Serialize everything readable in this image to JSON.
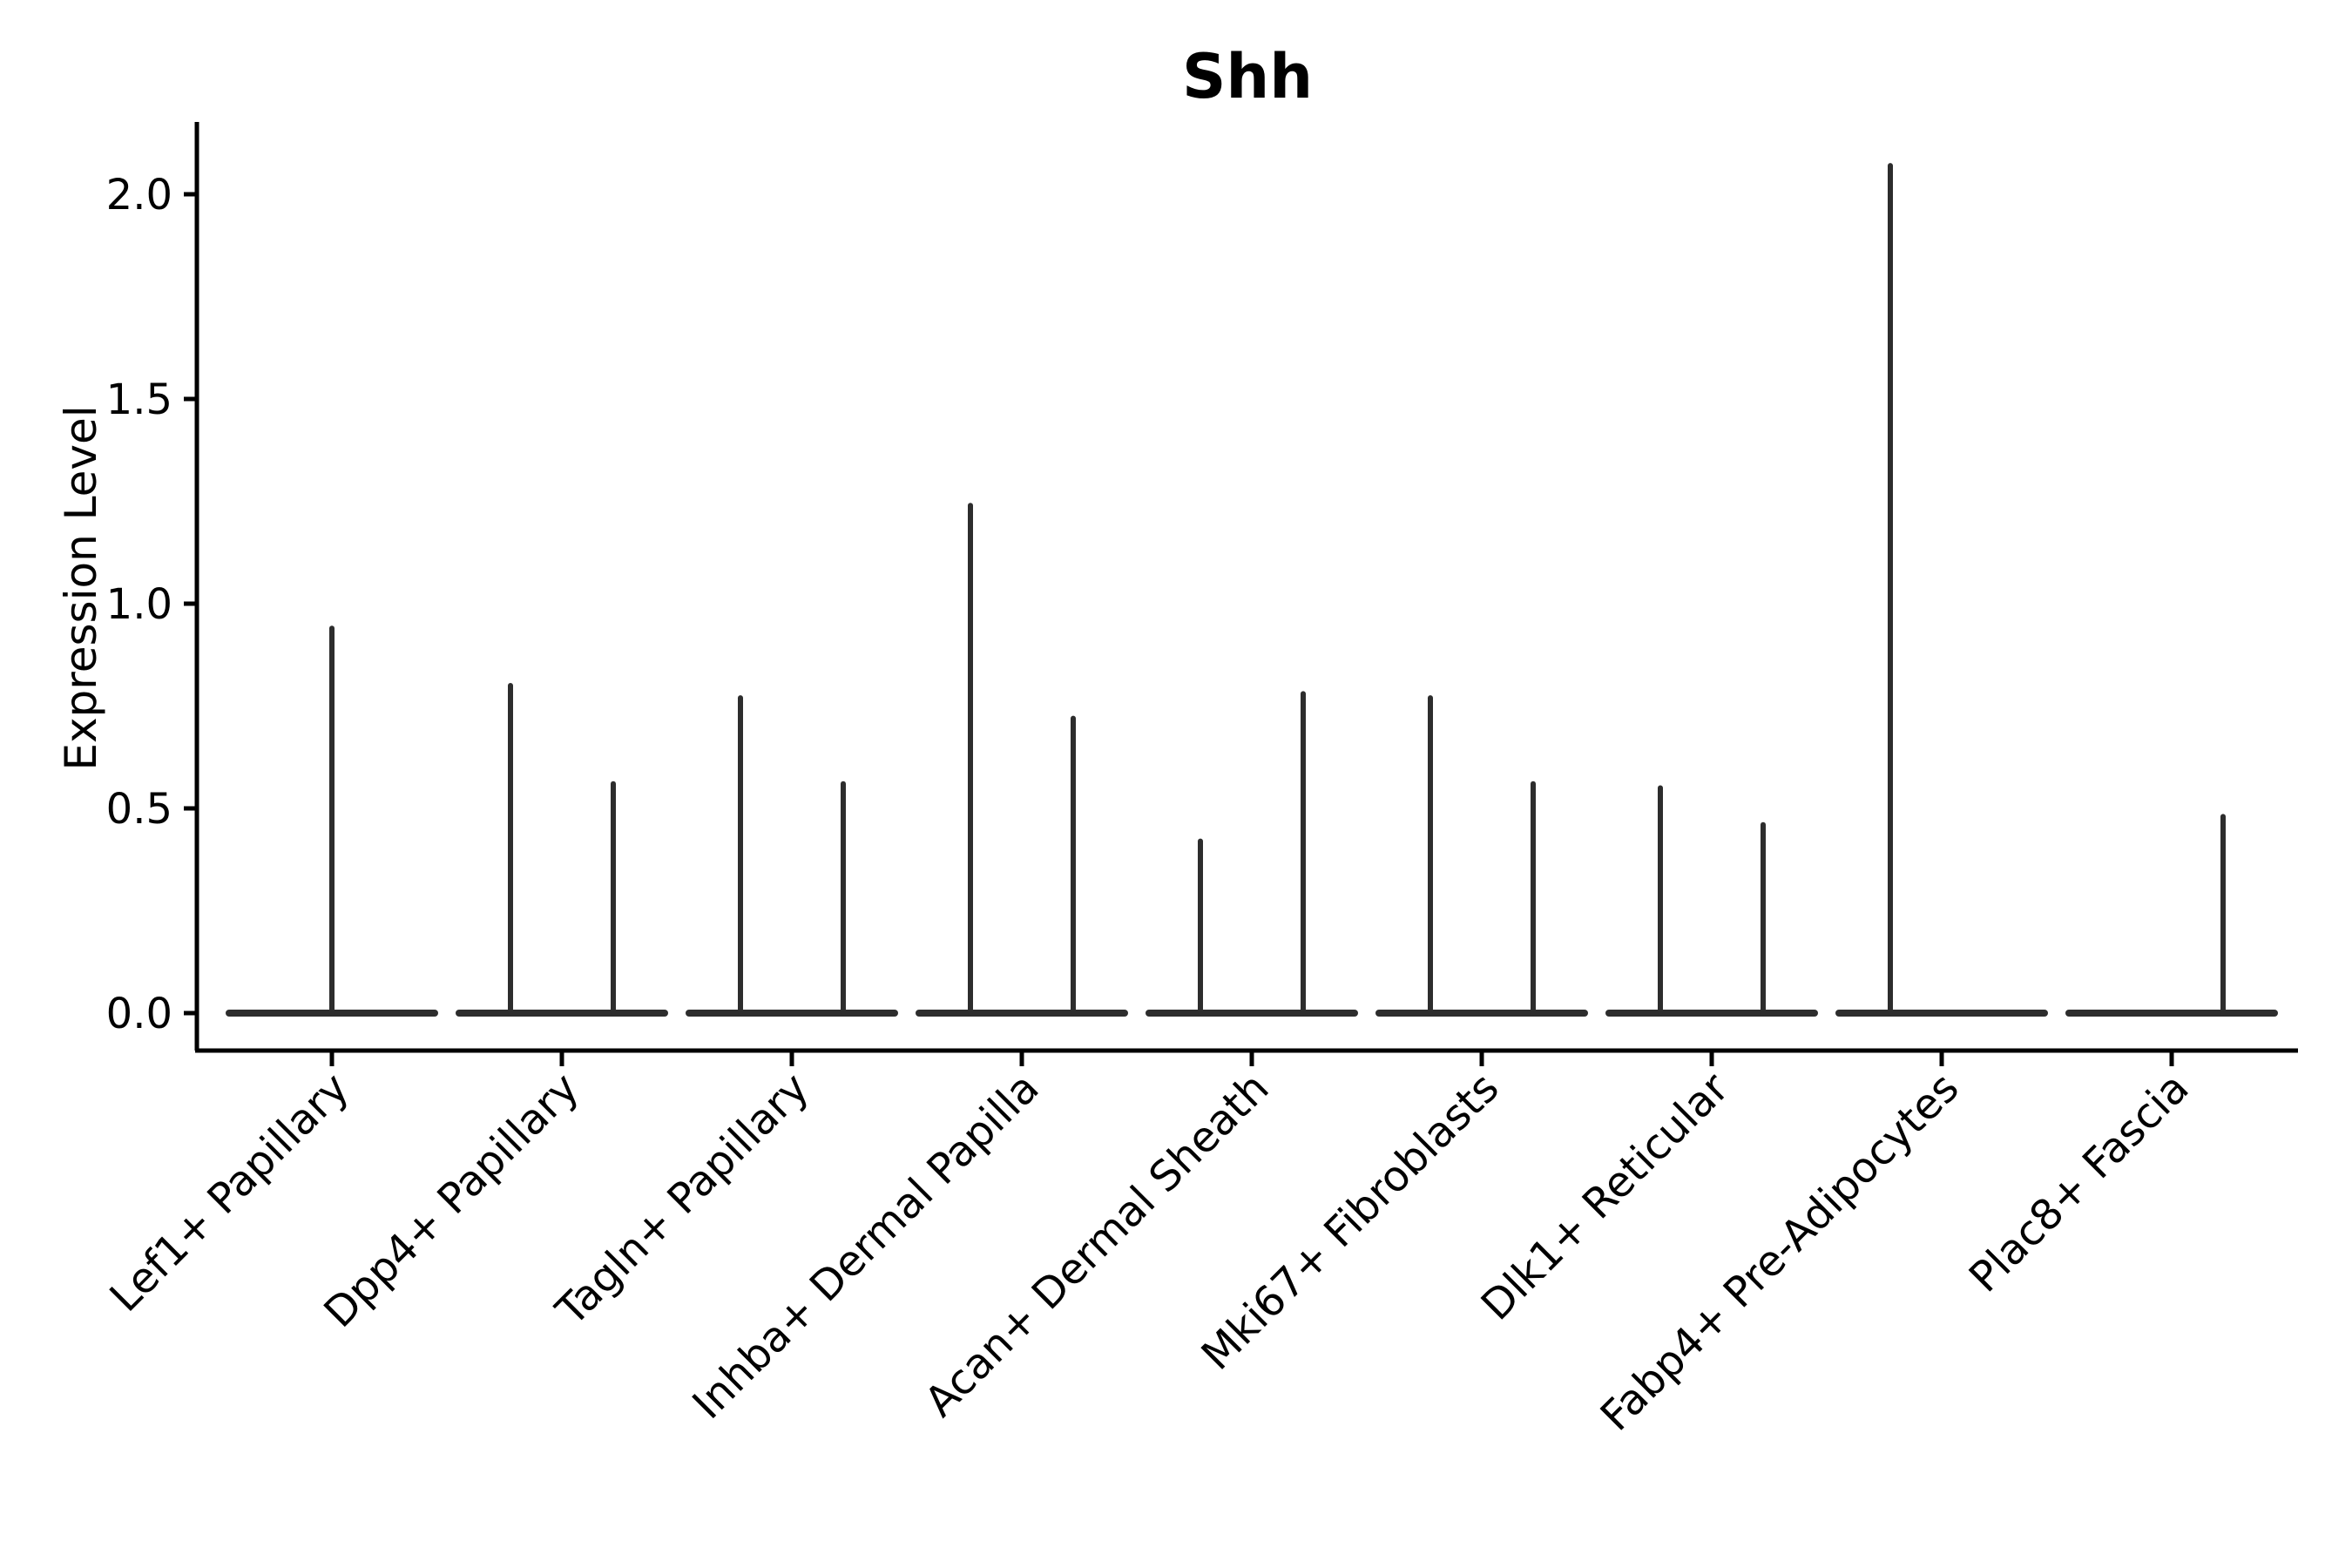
{
  "page": {
    "background": "#ffffff"
  },
  "chart_data": {
    "type": "violin",
    "title": "Shh",
    "xlabel": "",
    "ylabel": "Expression Level",
    "ylim": [
      0,
      2.15
    ],
    "yticks": [
      0.0,
      0.5,
      1.0,
      1.5,
      2.0
    ],
    "ytick_labels": [
      "0.0",
      "0.5",
      "1.0",
      "1.5",
      "2.0"
    ],
    "grid": false,
    "legend": null,
    "line_color": "#2d2d2d",
    "axis_color": "#000000",
    "categories": [
      "Lef1+ Papillary",
      "Dpp4+ Papillary",
      "Tagln+ Papillary",
      "Inhba+ Dermal Papilla",
      "Acan+ Dermal Sheath",
      "Mki67+ Fibroblasts",
      "Dlk1+ Reticular",
      "Fabp4+ Pre-Adipocytes",
      "Plac8+ Fascia"
    ],
    "violins": [
      {
        "category": "Lef1+ Papillary",
        "baseline_value": 0.0,
        "spikes": [
          {
            "pos": "center",
            "value": 0.94
          }
        ]
      },
      {
        "category": "Dpp4+ Papillary",
        "baseline_value": 0.0,
        "spikes": [
          {
            "pos": "left",
            "value": 0.8
          },
          {
            "pos": "right",
            "value": 0.56
          }
        ]
      },
      {
        "category": "Tagln+ Papillary",
        "baseline_value": 0.0,
        "spikes": [
          {
            "pos": "left",
            "value": 0.77
          },
          {
            "pos": "right",
            "value": 0.56
          }
        ]
      },
      {
        "category": "Inhba+ Dermal Papilla",
        "baseline_value": 0.0,
        "spikes": [
          {
            "pos": "left",
            "value": 1.24
          },
          {
            "pos": "right",
            "value": 0.72
          }
        ]
      },
      {
        "category": "Acan+ Dermal Sheath",
        "baseline_value": 0.0,
        "spikes": [
          {
            "pos": "left",
            "value": 0.42
          },
          {
            "pos": "right",
            "value": 0.78
          }
        ]
      },
      {
        "category": "Mki67+ Fibroblasts",
        "baseline_value": 0.0,
        "spikes": [
          {
            "pos": "left",
            "value": 0.77
          },
          {
            "pos": "right",
            "value": 0.56
          }
        ]
      },
      {
        "category": "Dlk1+ Reticular",
        "baseline_value": 0.0,
        "spikes": [
          {
            "pos": "left",
            "value": 0.55
          },
          {
            "pos": "right",
            "value": 0.46
          }
        ]
      },
      {
        "category": "Fabp4+ Pre-Adipocytes",
        "baseline_value": 0.0,
        "spikes": [
          {
            "pos": "left",
            "value": 2.07
          }
        ]
      },
      {
        "category": "Plac8+ Fascia",
        "baseline_value": 0.0,
        "spikes": [
          {
            "pos": "right",
            "value": 0.48
          }
        ]
      }
    ]
  }
}
